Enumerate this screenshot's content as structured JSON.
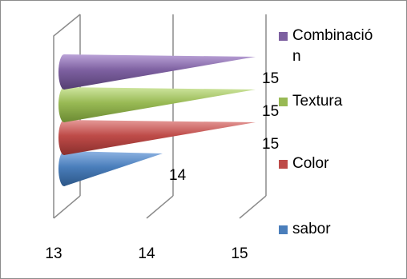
{
  "chart_data": {
    "type": "bar",
    "orientation": "horizontal",
    "style": "3d-cone",
    "categories": [
      "sabor",
      "Color",
      "Textura",
      "Combinació\nn"
    ],
    "values": [
      14,
      15,
      15,
      15
    ],
    "data_labels": [
      "14",
      "15",
      "15",
      "15"
    ],
    "colors": [
      "#4a7ebb",
      "#be4b48",
      "#98b954",
      "#7d60a0"
    ],
    "xlim": [
      13,
      15
    ],
    "xticks": [
      "13",
      "14",
      "15"
    ],
    "grid": true,
    "legend_position": "right",
    "title": "",
    "xlabel": "",
    "ylabel": ""
  },
  "legend": {
    "items": [
      {
        "label": "Combinació\nn",
        "color": "#7d60a0"
      },
      {
        "label": "Textura",
        "color": "#98b954"
      },
      {
        "label": "Color",
        "color": "#be4b48"
      },
      {
        "label": "sabor",
        "color": "#4a7ebb"
      }
    ]
  }
}
